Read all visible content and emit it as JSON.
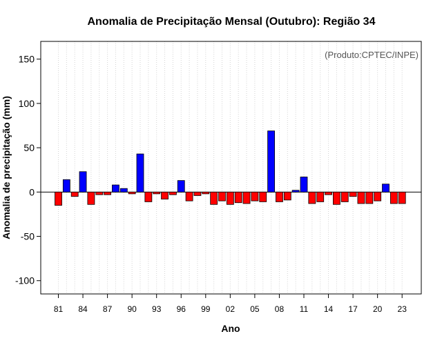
{
  "chart_data": {
    "type": "bar",
    "title": "Anomalia de Precipitação Mensal (Outubro): Região 34",
    "xlabel": "Ano",
    "ylabel": "Anomalia de precipitação (mm)",
    "credit": "(Produto:CPTEC/INPE)",
    "ylim": [
      -115,
      170
    ],
    "yticks": [
      -100,
      -50,
      0,
      50,
      100,
      150
    ],
    "grid": "vertical dotted",
    "positive_color": "#0000ff",
    "negative_color": "#ff0000",
    "years": [
      1981,
      1982,
      1983,
      1984,
      1985,
      1986,
      1987,
      1988,
      1989,
      1990,
      1991,
      1992,
      1993,
      1994,
      1995,
      1996,
      1997,
      1998,
      1999,
      2000,
      2001,
      2002,
      2003,
      2004,
      2005,
      2006,
      2007,
      2008,
      2009,
      2010,
      2011,
      2012,
      2013,
      2014,
      2015,
      2016,
      2017,
      2018,
      2019,
      2020,
      2021,
      2022,
      2023
    ],
    "values": [
      -15,
      14,
      -5,
      23,
      -14,
      -3,
      -3,
      8,
      4,
      -2,
      43,
      -11,
      -2,
      -8,
      -3,
      13,
      -10,
      -4,
      -2,
      -14,
      -10,
      -14,
      -12,
      -13,
      -10,
      -11,
      69,
      -11,
      -9,
      2,
      17,
      -13,
      -11,
      -3,
      -14,
      -11,
      -5,
      -13,
      -13,
      -10,
      9,
      -13,
      -13
    ],
    "xtick_labels": [
      "81",
      "84",
      "87",
      "90",
      "93",
      "96",
      "99",
      "02",
      "05",
      "08",
      "11",
      "14",
      "17",
      "20",
      "23"
    ],
    "xtick_years": [
      1981,
      1984,
      1987,
      1990,
      1993,
      1996,
      1999,
      2002,
      2005,
      2008,
      2011,
      2014,
      2017,
      2020,
      2023
    ]
  }
}
